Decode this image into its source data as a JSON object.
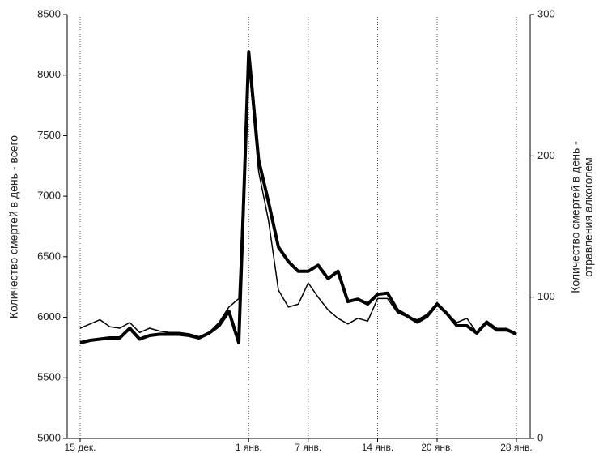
{
  "chart_data": {
    "type": "line",
    "ylabel": "Количество смертей в день - всего",
    "y2label": [
      "Количество смертей в день -",
      "отравления алкоголем"
    ],
    "categories": [
      "15 дек.",
      null,
      null,
      null,
      null,
      null,
      null,
      null,
      null,
      null,
      null,
      null,
      null,
      null,
      null,
      null,
      null,
      "1 янв.",
      null,
      null,
      null,
      null,
      null,
      "7 янв.",
      null,
      null,
      null,
      null,
      null,
      null,
      "14 янв.",
      null,
      null,
      null,
      null,
      null,
      "20 янв.",
      null,
      null,
      null,
      null,
      null,
      null,
      null,
      "28 янв."
    ],
    "series": [
      {
        "color": "#000000",
        "width": 1.5,
        "axis": "y2",
        "values": [
          78,
          81,
          84,
          79,
          78,
          82,
          75,
          78,
          76,
          75,
          75,
          74,
          72,
          75,
          82,
          93,
          99,
          266,
          189,
          154,
          105,
          93,
          95,
          110,
          100,
          91,
          85,
          81,
          85,
          83,
          99,
          99,
          89,
          86,
          84,
          88,
          96,
          88,
          82,
          85,
          75,
          81,
          76,
          76,
          74
        ]
      },
      {
        "color": "#000000",
        "width": 4,
        "axis": "y",
        "values": [
          5790,
          5810,
          5820,
          5830,
          5830,
          5910,
          5820,
          5850,
          5860,
          5860,
          5860,
          5850,
          5830,
          5870,
          5930,
          6050,
          5790,
          8190,
          7300,
          6950,
          6580,
          6460,
          6380,
          6380,
          6430,
          6320,
          6380,
          6130,
          6150,
          6110,
          6190,
          6200,
          6060,
          6010,
          5960,
          6010,
          6110,
          6030,
          5930,
          5930,
          5870,
          5960,
          5900,
          5900,
          5860
        ]
      }
    ],
    "ylim": [
      5000,
      8500
    ],
    "yticks": [
      5000,
      5500,
      6000,
      6500,
      7000,
      7500,
      8000,
      8500
    ],
    "y2lim": [
      0,
      300
    ],
    "y2ticks": [
      0,
      100,
      200,
      300
    ],
    "grid": true
  }
}
